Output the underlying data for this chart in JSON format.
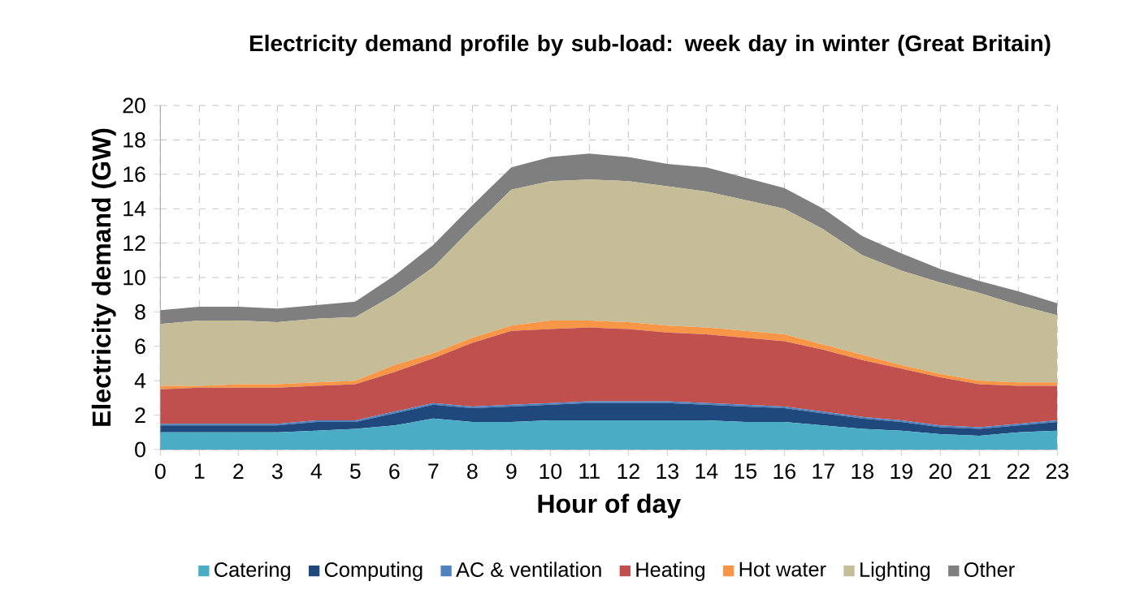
{
  "chart_data": {
    "type": "area",
    "stacked": true,
    "title": "Electricity demand profile by sub-load: week day in winter (Great Britain)",
    "xlabel": "Hour of day",
    "ylabel": "Electricity demand (GW)",
    "categories": [
      "0",
      "1",
      "2",
      "3",
      "4",
      "5",
      "6",
      "7",
      "8",
      "9",
      "10",
      "11",
      "12",
      "13",
      "14",
      "15",
      "16",
      "17",
      "18",
      "19",
      "20",
      "21",
      "22",
      "23"
    ],
    "ylim": [
      0,
      20
    ],
    "yticks": [
      0,
      2,
      4,
      6,
      8,
      10,
      12,
      14,
      16,
      18,
      20
    ],
    "grid": true,
    "legend": "bottom",
    "series": [
      {
        "name": "Catering",
        "color": "#4bacc6",
        "values": [
          1.0,
          1.0,
          1.0,
          1.0,
          1.1,
          1.2,
          1.4,
          1.8,
          1.6,
          1.6,
          1.7,
          1.7,
          1.7,
          1.7,
          1.7,
          1.6,
          1.6,
          1.4,
          1.2,
          1.1,
          0.9,
          0.8,
          1.0,
          1.1
        ]
      },
      {
        "name": "Computing",
        "color": "#1f497d",
        "values": [
          0.4,
          0.4,
          0.4,
          0.4,
          0.5,
          0.4,
          0.7,
          0.8,
          0.8,
          0.9,
          0.9,
          1.0,
          1.0,
          1.0,
          0.9,
          0.9,
          0.8,
          0.7,
          0.6,
          0.5,
          0.4,
          0.4,
          0.4,
          0.5
        ]
      },
      {
        "name": "AC & ventilation",
        "color": "#4f81bd",
        "values": [
          0.1,
          0.1,
          0.1,
          0.1,
          0.1,
          0.1,
          0.1,
          0.1,
          0.1,
          0.1,
          0.1,
          0.1,
          0.1,
          0.1,
          0.1,
          0.1,
          0.1,
          0.1,
          0.1,
          0.1,
          0.1,
          0.1,
          0.1,
          0.1
        ]
      },
      {
        "name": "Heating",
        "color": "#c0504d",
        "values": [
          2.0,
          2.1,
          2.1,
          2.1,
          2.0,
          2.1,
          2.3,
          2.6,
          3.7,
          4.3,
          4.3,
          4.3,
          4.2,
          4.0,
          4.0,
          3.9,
          3.8,
          3.6,
          3.3,
          3.0,
          2.8,
          2.5,
          2.2,
          2.0
        ]
      },
      {
        "name": "Hot water",
        "color": "#f79646",
        "values": [
          0.2,
          0.1,
          0.2,
          0.2,
          0.2,
          0.2,
          0.4,
          0.3,
          0.3,
          0.3,
          0.5,
          0.4,
          0.4,
          0.4,
          0.4,
          0.4,
          0.4,
          0.3,
          0.3,
          0.2,
          0.2,
          0.2,
          0.2,
          0.2
        ]
      },
      {
        "name": "Lighting",
        "color": "#c4bd97",
        "values": [
          3.6,
          3.8,
          3.7,
          3.6,
          3.7,
          3.7,
          4.1,
          5.0,
          6.4,
          7.9,
          8.1,
          8.2,
          8.2,
          8.1,
          7.9,
          7.6,
          7.3,
          6.7,
          5.8,
          5.5,
          5.3,
          5.1,
          4.5,
          3.9
        ]
      },
      {
        "name": "Other",
        "color": "#7f7f7f",
        "values": [
          0.8,
          0.8,
          0.8,
          0.8,
          0.8,
          0.9,
          1.1,
          1.3,
          1.3,
          1.3,
          1.4,
          1.5,
          1.4,
          1.3,
          1.4,
          1.3,
          1.2,
          1.2,
          1.1,
          1.0,
          0.8,
          0.7,
          0.8,
          0.7
        ]
      }
    ]
  }
}
